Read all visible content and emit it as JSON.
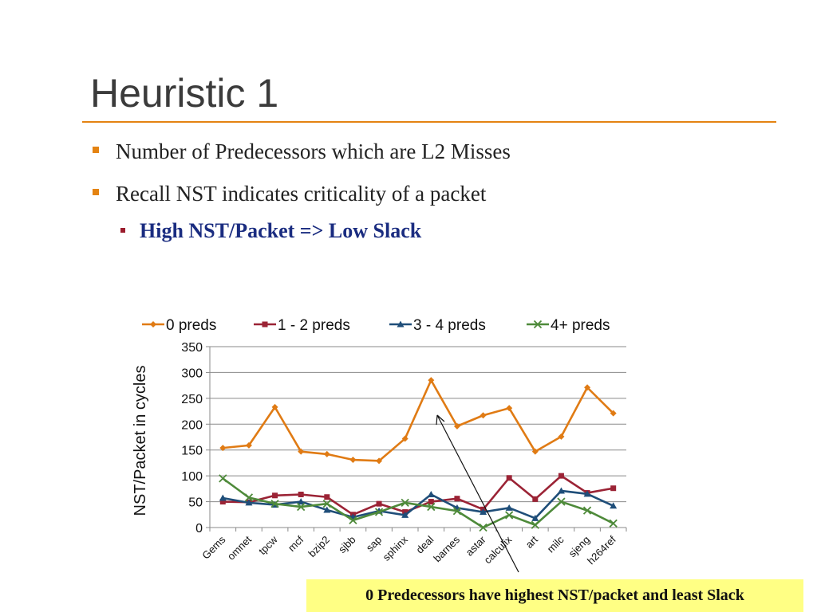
{
  "slide": {
    "title": "Heuristic 1",
    "bullets": [
      "Number of Predecessors which are L2 Misses",
      "Recall NST indicates criticality of a packet"
    ],
    "sub_bullet": "High NST/Packet =>  Low Slack",
    "callout": "0 Predecessors have highest NST/packet and least Slack",
    "accent_color": "#e48312"
  },
  "chart_data": {
    "type": "line",
    "ylabel": "NST/Packet in cycles",
    "ylim": [
      0,
      350
    ],
    "yticks": [
      0,
      50,
      100,
      150,
      200,
      250,
      300,
      350
    ],
    "grid": true,
    "legend_position": "top",
    "categories": [
      "Gems",
      "omnet",
      "tpcw",
      "mcf",
      "bzip2",
      "sjbb",
      "sap",
      "sphinx",
      "deal",
      "barnes",
      "astar",
      "calculix",
      "art",
      "milc",
      "sjeng",
      "h264ref"
    ],
    "series": [
      {
        "name": "0 preds",
        "color": "#e07b14",
        "marker": "diamond",
        "values": [
          154,
          159,
          233,
          147,
          142,
          131,
          129,
          172,
          285,
          196,
          217,
          231,
          147,
          176,
          271,
          221
        ]
      },
      {
        "name": "1 - 2 preds",
        "color": "#9b2335",
        "marker": "square",
        "values": [
          50,
          49,
          62,
          64,
          59,
          25,
          46,
          30,
          50,
          56,
          35,
          96,
          55,
          100,
          67,
          76
        ]
      },
      {
        "name": "3 - 4 preds",
        "color": "#1f4e79",
        "marker": "triangle",
        "values": [
          57,
          48,
          44,
          50,
          34,
          20,
          32,
          24,
          64,
          38,
          30,
          38,
          18,
          71,
          65,
          42
        ]
      },
      {
        "name": "4+ preds",
        "color": "#4e8a3a",
        "marker": "x",
        "values": [
          95,
          58,
          46,
          40,
          46,
          14,
          30,
          48,
          40,
          32,
          0,
          24,
          5,
          50,
          33,
          8
        ]
      }
    ]
  }
}
